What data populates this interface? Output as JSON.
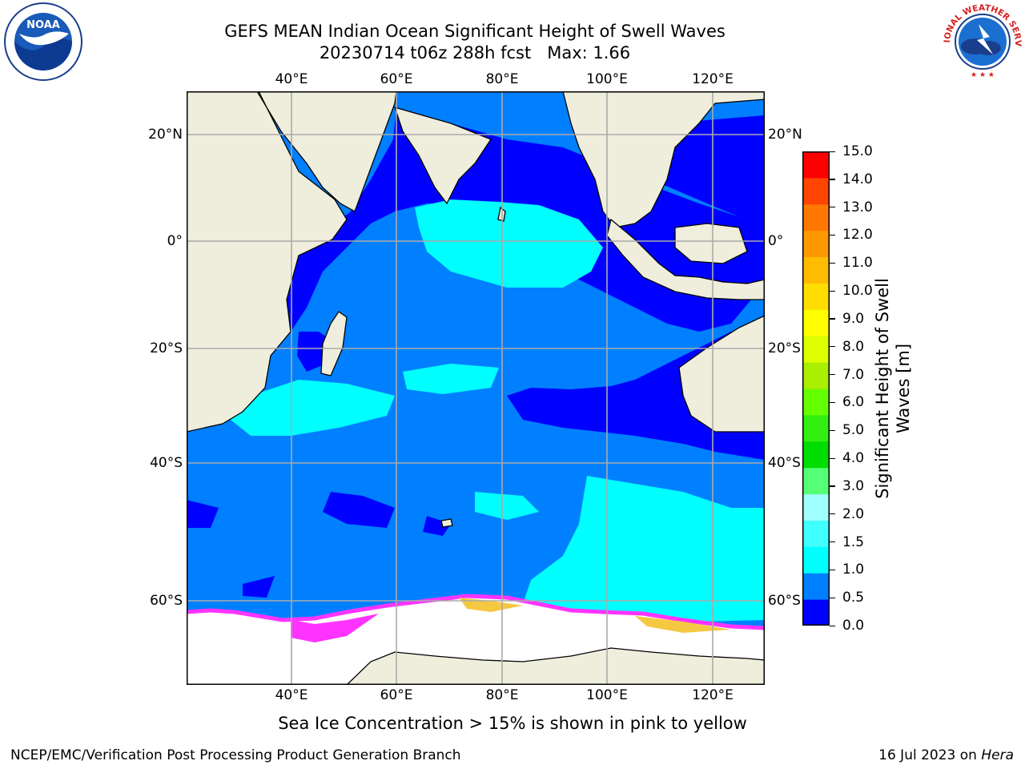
{
  "title": {
    "line1": "GEFS MEAN Indian Ocean Significant Height of Swell Waves",
    "line2": "20230714 t06z 288h fcst   Max: 1.66"
  },
  "logos": {
    "noaa_text": "NOAA",
    "nws_text": "NATIONAL WEATHER SERVICE"
  },
  "map": {
    "lon_labels": [
      "40°E",
      "60°E",
      "80°E",
      "100°E",
      "120°E"
    ],
    "lat_labels": [
      "20°N",
      "0°",
      "20°S",
      "40°S",
      "60°S"
    ],
    "land_color": "#efeedd",
    "ocean_colors": {
      "0.0-0.5": "#0000ff",
      "0.5-1.0": "#0080ff",
      "1.0-1.5": "#00ffff",
      "sea_ice_pink": "#ff33ff",
      "sea_ice_yellow": "#f5c842"
    }
  },
  "colorbar": {
    "title_line1": "Significant Height of Swell",
    "title_line2": "Waves [m]",
    "levels": [
      "0.0",
      "0.5",
      "1.0",
      "1.5",
      "2.0",
      "3.0",
      "4.0",
      "5.0",
      "6.0",
      "7.0",
      "8.0",
      "9.0",
      "10.0",
      "11.0",
      "12.0",
      "13.0",
      "14.0",
      "15.0"
    ],
    "colors": [
      "#0000ff",
      "#0080ff",
      "#00ffff",
      "#40ffff",
      "#a0ffff",
      "#55ff77",
      "#00dd00",
      "#33ee11",
      "#66ff00",
      "#aaee00",
      "#ddff00",
      "#ffff00",
      "#ffdd00",
      "#ffbb00",
      "#ff9900",
      "#ff7700",
      "#ff4400",
      "#ff0000"
    ]
  },
  "caption": "Sea Ice Concentration > 15% is shown in pink to yellow",
  "footer": {
    "left": "NCEP/EMC/Verification Post Processing Product Generation Branch",
    "right_prefix": "16 Jul 2023 on ",
    "right_host": "Hera"
  }
}
